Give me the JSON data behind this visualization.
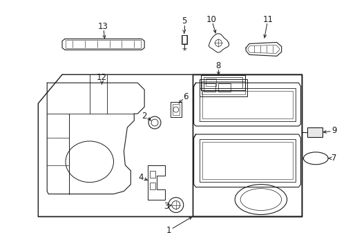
{
  "background_color": "#ffffff",
  "line_color": "#1a1a1a",
  "fig_width": 4.89,
  "fig_height": 3.6,
  "dpi": 100,
  "label_fontsize": 8.5
}
